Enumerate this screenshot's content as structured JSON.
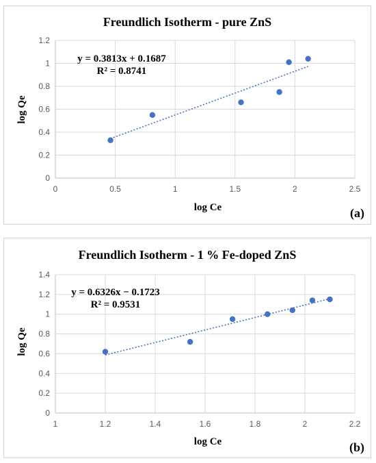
{
  "chart_data": [
    {
      "type": "scatter",
      "title": "Freundlich Isotherm - pure ZnS",
      "xlabel": "log Ce",
      "ylabel": "log Qe",
      "panel_label": "(a)",
      "xlim": [
        0,
        2.5
      ],
      "ylim": [
        0,
        1.2
      ],
      "x_ticks": [
        0,
        0.5,
        1,
        1.5,
        2,
        2.5
      ],
      "x_tick_labels": [
        "0",
        "0.5",
        "1",
        "1.5",
        "2",
        "2.5"
      ],
      "y_ticks": [
        0,
        0.2,
        0.4,
        0.6,
        0.8,
        1,
        1.2
      ],
      "y_tick_labels": [
        "0",
        "0.2",
        "0.4",
        "0.6",
        "0.8",
        "1",
        "1.2"
      ],
      "series": [
        {
          "x": [
            0.46,
            0.81,
            1.55,
            1.87,
            1.95,
            2.11
          ],
          "y": [
            0.33,
            0.55,
            0.66,
            0.75,
            1.01,
            1.04
          ]
        }
      ],
      "trendline": {
        "slope": 0.3813,
        "intercept": 0.1687,
        "x_range": [
          0.46,
          2.11
        ]
      },
      "equation": "y = 0.3813x + 0.1687",
      "r_squared": "R² = 0.8741",
      "grid": true,
      "color": "#4472c4"
    },
    {
      "type": "scatter",
      "title": "Freundlich Isotherm - 1 % Fe-doped ZnS",
      "xlabel": "log Ce",
      "ylabel": "log Qe",
      "panel_label": "(b)",
      "xlim": [
        1,
        2.2
      ],
      "ylim": [
        0,
        1.4
      ],
      "x_ticks": [
        1,
        1.2,
        1.4,
        1.6,
        1.8,
        2,
        2.2
      ],
      "x_tick_labels": [
        "1",
        "1.2",
        "1.4",
        "1.6",
        "1.8",
        "2",
        "2.2"
      ],
      "y_ticks": [
        0,
        0.2,
        0.4,
        0.6,
        0.8,
        1,
        1.2,
        1.4
      ],
      "y_tick_labels": [
        "0",
        "0.2",
        "0.4",
        "0.6",
        "0.8",
        "1",
        "1.2",
        "1.4"
      ],
      "series": [
        {
          "x": [
            1.2,
            1.54,
            1.71,
            1.85,
            1.95,
            2.03,
            2.1
          ],
          "y": [
            0.62,
            0.72,
            0.95,
            1.0,
            1.04,
            1.14,
            1.15
          ]
        }
      ],
      "trendline": {
        "slope": 0.6326,
        "intercept": -0.1723,
        "x_range": [
          1.2,
          2.1
        ]
      },
      "equation": "y = 0.6326x − 0.1723",
      "r_squared": "R² = 0.9531",
      "grid": true,
      "color": "#4472c4"
    }
  ]
}
